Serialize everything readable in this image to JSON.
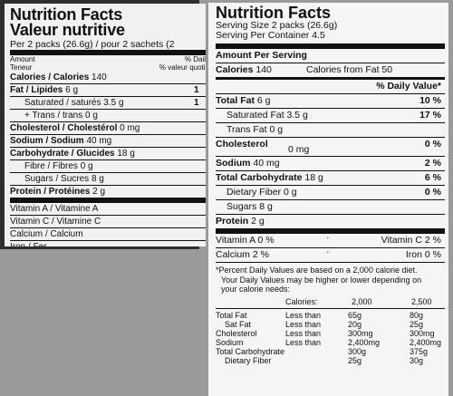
{
  "left_label": {
    "title_en": "Nutrition Facts",
    "title_fr": "Valeur nutritive",
    "serving": "Per 2 packs (26.6g) / pour 2 sachets (2",
    "amount_en": "Amount",
    "amount_fr": "Teneur",
    "dv_en": "% Daily",
    "dv_fr": "% valeur quotid",
    "rows": [
      {
        "label": "Calories / Calories",
        "value": "140",
        "pct": "",
        "bold": true,
        "indent": false
      },
      {
        "label": "Fat / Lipides",
        "value": "6 g",
        "pct": "1",
        "bold": true,
        "indent": false
      },
      {
        "label": "Saturated / saturés",
        "value": "3.5 g",
        "pct": "1",
        "bold": false,
        "indent": true
      },
      {
        "label": "+ Trans / trans",
        "value": "0 g",
        "pct": "",
        "bold": false,
        "indent": true
      },
      {
        "label": "Cholesterol / Cholestérol",
        "value": "0 mg",
        "pct": "",
        "bold": true,
        "indent": false
      },
      {
        "label": "Sodium / Sodium",
        "value": "40 mg",
        "pct": "",
        "bold": true,
        "indent": false
      },
      {
        "label": "Carbohydrate / Glucides",
        "value": "18 g",
        "pct": "",
        "bold": true,
        "indent": false
      },
      {
        "label": "Fibre / Fibres",
        "value": "0 g",
        "pct": "",
        "bold": false,
        "indent": true
      },
      {
        "label": "Sugars / Sucres",
        "value": "8 g",
        "pct": "",
        "bold": false,
        "indent": true
      },
      {
        "label": "Protein / Protéines",
        "value": "2 g",
        "pct": "",
        "bold": true,
        "indent": false
      }
    ],
    "vitamins": [
      "Vitamin A / Vitamine A",
      "Vitamin C / Vitamine C",
      "Calcium / Calcium",
      "Iron / Fer"
    ]
  },
  "right_label": {
    "title": "Nutrition Facts",
    "serving_size": "Serving Size 2 packs (26.6g)",
    "servings_per_container": "Serving Per Container 4.5",
    "amount_per_serving": "Amount Per Serving",
    "calories_label": "Calories",
    "calories_value": "140",
    "calories_fat": "Calories from Fat 50",
    "dv_header": "% Daily Value*",
    "rows": [
      {
        "label": "Total Fat",
        "value": "6 g",
        "pct": "10 %",
        "bold": true,
        "indent": false
      },
      {
        "label": "Saturated Fat",
        "value": "3.5 g",
        "pct": "17 %",
        "bold": false,
        "indent": true
      },
      {
        "label": "Trans Fat",
        "value": "0 g",
        "pct": "",
        "bold": false,
        "indent": true
      },
      {
        "label": "Cholesterol",
        "value": "0 mg",
        "pct": "0 %",
        "bold": true,
        "indent": false
      },
      {
        "label": "Sodium",
        "value": "40 mg",
        "pct": "2 %",
        "bold": true,
        "indent": false
      },
      {
        "label": "Total Carbohydrate",
        "value": "18 g",
        "pct": "6 %",
        "bold": true,
        "indent": false
      },
      {
        "label": "Dietary Fiber",
        "value": "0 g",
        "pct": "0 %",
        "bold": false,
        "indent": true
      },
      {
        "label": "Sugars",
        "value": "8 g",
        "pct": "",
        "bold": false,
        "indent": true
      },
      {
        "label": "Protein",
        "value": "2 g",
        "pct": "",
        "bold": true,
        "indent": false
      }
    ],
    "vitamins": [
      {
        "left": "Vitamin A 0 %",
        "right": "Vitamin C 2 %"
      },
      {
        "left": "Calcium 2 %",
        "right": "Iron 0 %"
      }
    ],
    "footnote_1": "*Percent Daily Values are based on a 2,000 calorie diet.",
    "footnote_2": "Your Daily Values may be higher or lower depending on",
    "footnote_3": "your calorie needs:",
    "dv_table": {
      "header": [
        "",
        "Calories:",
        "2,000",
        "2,500"
      ],
      "rows": [
        [
          "Total Fat",
          "Less than",
          "65g",
          "80g"
        ],
        [
          "Sat Fat",
          "Less than",
          "20g",
          "25g"
        ],
        [
          "Cholesterol",
          "Less than",
          "300mg",
          "300mg"
        ],
        [
          "Sodium",
          "Less than",
          "2,400mg",
          "2,400mg"
        ],
        [
          "Total Carbohydrate",
          "",
          "300g",
          "375g"
        ],
        [
          "Dietary Fiber",
          "",
          "25g",
          "30g"
        ]
      ]
    }
  }
}
